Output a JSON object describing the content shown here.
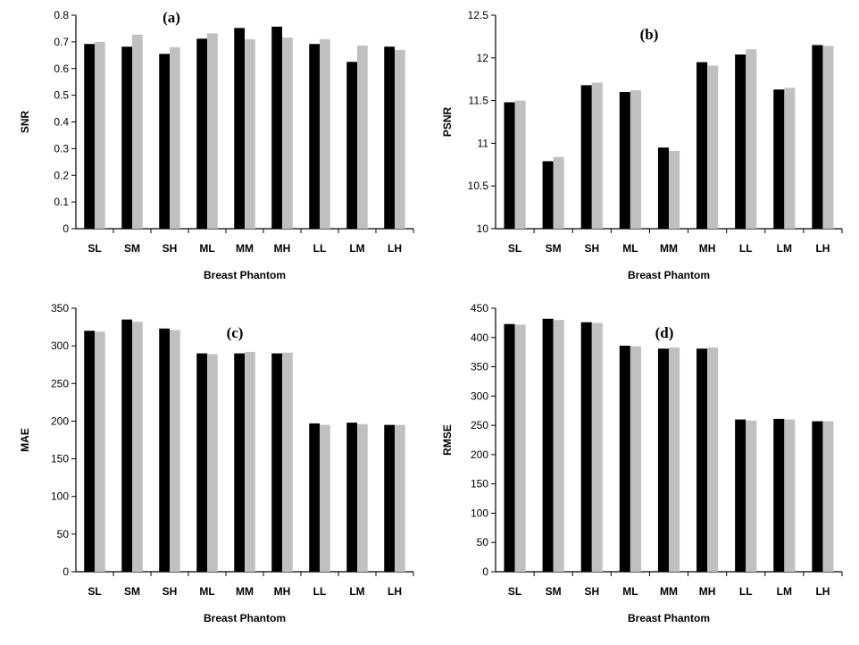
{
  "colors": {
    "series_1": "#000000",
    "series_2": "#c0c0c0"
  },
  "chart_data": [
    {
      "type": "bar",
      "label": "(a)",
      "categories": [
        "SL",
        "SM",
        "SH",
        "ML",
        "MM",
        "MH",
        "LL",
        "LM",
        "LH"
      ],
      "series": [
        {
          "values": [
            0.692,
            0.682,
            0.655,
            0.712,
            0.752,
            0.757,
            0.692,
            0.625,
            0.682
          ]
        },
        {
          "values": [
            0.7,
            0.727,
            0.68,
            0.732,
            0.71,
            0.716,
            0.71,
            0.686,
            0.67
          ]
        }
      ],
      "xlabel": "Breast Phantom",
      "ylabel": "SNR",
      "ylim": [
        0,
        0.8
      ],
      "yticks": [
        "0",
        "0.1",
        "0.2",
        "0.3",
        "0.4",
        "0.5",
        "0.6",
        "0.7",
        "0.8"
      ]
    },
    {
      "type": "bar",
      "label": "(b)",
      "categories": [
        "SL",
        "SM",
        "SH",
        "ML",
        "MM",
        "MH",
        "LL",
        "LM",
        "LH"
      ],
      "series": [
        {
          "values": [
            11.48,
            10.79,
            11.68,
            11.6,
            10.95,
            11.95,
            12.04,
            11.63,
            12.15
          ]
        },
        {
          "values": [
            11.5,
            10.84,
            11.71,
            11.62,
            10.91,
            11.91,
            12.1,
            11.65,
            12.14
          ]
        }
      ],
      "xlabel": "Breast Phantom",
      "ylabel": "PSNR",
      "ylim": [
        10,
        12.5
      ],
      "yticks": [
        "10",
        "10.5",
        "11",
        "11.5",
        "12",
        "12.5"
      ]
    },
    {
      "type": "bar",
      "label": "(c)",
      "categories": [
        "SL",
        "SM",
        "SH",
        "ML",
        "MM",
        "MH",
        "LL",
        "LM",
        "LH"
      ],
      "series": [
        {
          "values": [
            320,
            335,
            323,
            290,
            290,
            290,
            197,
            198,
            195
          ]
        },
        {
          "values": [
            319,
            332,
            321,
            289,
            292,
            291,
            195,
            196,
            195
          ]
        }
      ],
      "xlabel": "Breast Phantom",
      "ylabel": "MAE",
      "ylim": [
        0,
        350
      ],
      "yticks": [
        "0",
        "50",
        "100",
        "150",
        "200",
        "250",
        "300",
        "350"
      ]
    },
    {
      "type": "bar",
      "label": "(d)",
      "categories": [
        "SL",
        "SM",
        "SH",
        "ML",
        "MM",
        "MH",
        "LL",
        "LM",
        "LH"
      ],
      "series": [
        {
          "values": [
            423,
            432,
            426,
            386,
            381,
            381,
            260,
            261,
            257
          ]
        },
        {
          "values": [
            422,
            430,
            425,
            385,
            383,
            383,
            258,
            260,
            257
          ]
        }
      ],
      "xlabel": "Breast Phantom",
      "ylabel": "RMSE",
      "ylim": [
        0,
        450
      ],
      "yticks": [
        "0",
        "50",
        "100",
        "150",
        "200",
        "250",
        "300",
        "350",
        "400",
        "450"
      ]
    }
  ]
}
